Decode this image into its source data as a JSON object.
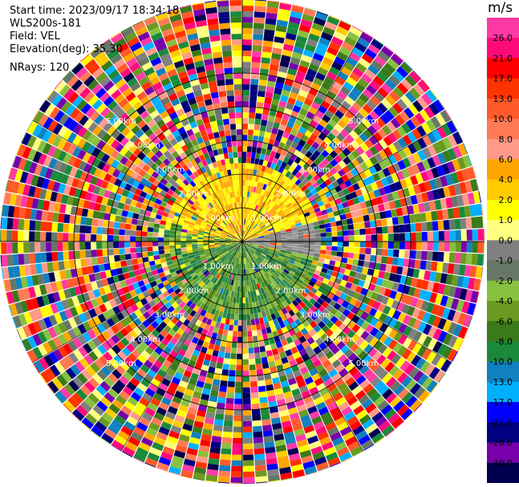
{
  "header": {
    "start_time": "Start time: 2023/09/17 18:34:18",
    "instrument": "WLS200s-181",
    "field": "Field: VEL",
    "elevation": "Elevation(deg): 35.30",
    "nrays": "NRays: 120"
  },
  "colorbar": {
    "unit": "m/s",
    "ticks": [
      "26.0",
      "21.0",
      "17.0",
      "13.0",
      "10.0",
      "8.0",
      "6.0",
      "4.0",
      "2.0",
      "1.0",
      "0.0",
      "-1.0",
      "-2.0",
      "-4.0",
      "-6.0",
      "-8.0",
      "-10.0",
      "-13.0",
      "-17.0",
      "-21.0",
      "-26.0",
      "-30.0"
    ],
    "colors": [
      "#ff3aa5",
      "#ff0a7a",
      "#ff0000",
      "#ff3300",
      "#ff5a2a",
      "#ff7a55",
      "#ff9a8a",
      "#ffa500",
      "#ffcc00",
      "#ffff00",
      "#ffff80",
      "#808080",
      "#667766",
      "#88c040",
      "#6a9a20",
      "#3a7a1a",
      "#1a8a3a",
      "#1080c0",
      "#00b0ff",
      "#0000ff",
      "#000080",
      "#7700aa",
      "#000050"
    ]
  },
  "chart_data": {
    "type": "heatmap",
    "projection": "polar PPI",
    "field": "VEL",
    "units": "m/s",
    "n_rays": 120,
    "range_ring_labels": [
      "1.00km",
      "2.00km",
      "3.00km",
      "4.00km",
      "5.00km"
    ],
    "range_rings_km": [
      1,
      2,
      3,
      4,
      5
    ],
    "max_range_km": 5.4,
    "valid_range_km": 2.4,
    "velocity_pattern": {
      "north_sector": "positive 1.0 to 6.0 m/s",
      "east_sector": "near 0 m/s (grey)",
      "south_sector": "negative -2.0 to -8.0 m/s",
      "beyond_valid_range": "noise (all colors)"
    }
  }
}
